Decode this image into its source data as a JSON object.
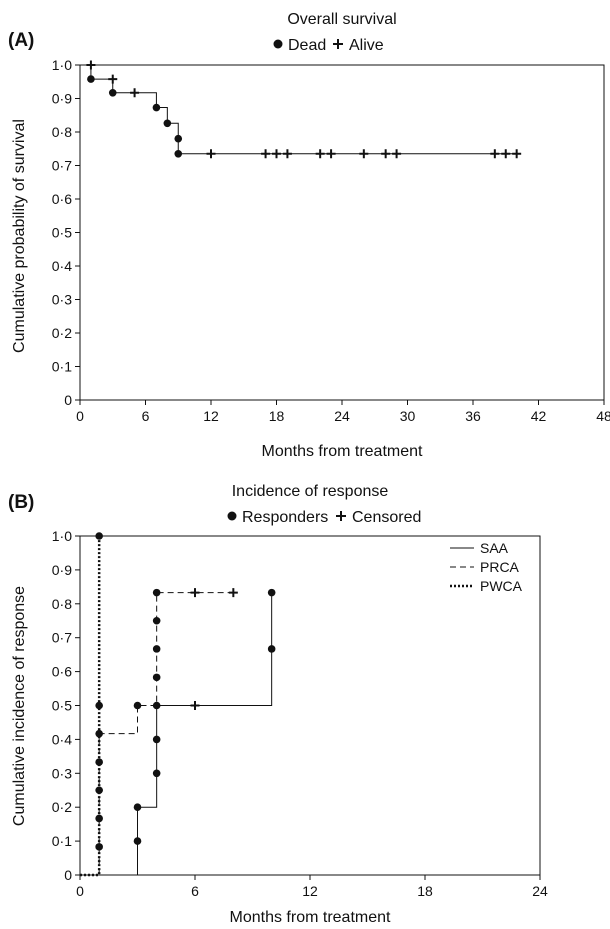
{
  "chart_data": [
    {
      "type": "line",
      "panel": "(A)",
      "title": "Overall survival",
      "legend": {
        "dead": "Dead",
        "alive": "Alive"
      },
      "xlabel": "Months from treatment",
      "ylabel": "Cumulative probability of survival",
      "xlim": [
        0,
        48
      ],
      "ylim": [
        0,
        1
      ],
      "xticks": [
        "0",
        "6",
        "12",
        "18",
        "24",
        "30",
        "36",
        "42",
        "48"
      ],
      "yticks": [
        "0",
        "0·1",
        "0·2",
        "0·3",
        "0·4",
        "0·5",
        "0·6",
        "0·7",
        "0·8",
        "0·9",
        "1·0"
      ],
      "grid": false,
      "series": [
        {
          "style": "solid",
          "steps": [
            [
              0,
              1.0
            ],
            [
              1,
              0.958
            ],
            [
              3,
              0.917
            ],
            [
              7,
              0.873
            ],
            [
              8,
              0.826
            ],
            [
              9,
              0.735
            ],
            [
              40,
              0.735
            ]
          ],
          "events": [
            [
              1,
              0.958
            ],
            [
              3,
              0.917
            ],
            [
              7,
              0.873
            ],
            [
              8,
              0.826
            ],
            [
              9,
              0.78
            ],
            [
              9,
              0.735
            ]
          ],
          "censored": [
            [
              1,
              1.0
            ],
            [
              3,
              0.958
            ],
            [
              5,
              0.917
            ],
            [
              12,
              0.735
            ],
            [
              17,
              0.735
            ],
            [
              18,
              0.735
            ],
            [
              19,
              0.735
            ],
            [
              22,
              0.735
            ],
            [
              23,
              0.735
            ],
            [
              26,
              0.735
            ],
            [
              28,
              0.735
            ],
            [
              29,
              0.735
            ],
            [
              38,
              0.735
            ],
            [
              39,
              0.735
            ],
            [
              40,
              0.735
            ]
          ]
        }
      ]
    },
    {
      "type": "line",
      "panel": "(B)",
      "title": "Incidence of response",
      "legend": {
        "dead": "Responders",
        "alive": "Censored"
      },
      "xlabel": "Months from treatment",
      "ylabel": "Cumulative incidence of response",
      "xlim": [
        0,
        24
      ],
      "ylim": [
        0,
        1
      ],
      "xticks": [
        "0",
        "6",
        "12",
        "18",
        "24"
      ],
      "yticks": [
        "0",
        "0·1",
        "0·2",
        "0·3",
        "0·4",
        "0·5",
        "0·6",
        "0·7",
        "0·8",
        "0·9",
        "1·0"
      ],
      "grid": false,
      "legend_position": "top-right",
      "series": [
        {
          "name": "SAA",
          "style": "solid",
          "steps": [
            [
              0,
              0
            ],
            [
              3,
              0.2
            ],
            [
              4,
              0.5
            ],
            [
              10,
              0.833
            ]
          ],
          "events": [
            [
              3,
              0.1
            ],
            [
              3,
              0.2
            ],
            [
              4,
              0.3
            ],
            [
              4,
              0.4
            ],
            [
              4,
              0.5
            ],
            [
              10,
              0.667
            ],
            [
              10,
              0.833
            ]
          ],
          "censored": [
            [
              6,
              0.5
            ]
          ]
        },
        {
          "name": "PRCA",
          "style": "dashed",
          "steps": [
            [
              0,
              0
            ],
            [
              1,
              0.417
            ],
            [
              3,
              0.5
            ],
            [
              4,
              0.833
            ],
            [
              8,
              0.833
            ]
          ],
          "events": [
            [
              1,
              0.417
            ],
            [
              3,
              0.5
            ],
            [
              4,
              0.583
            ],
            [
              4,
              0.667
            ],
            [
              4,
              0.75
            ],
            [
              4,
              0.833
            ]
          ],
          "censored": [
            [
              6,
              0.833
            ],
            [
              8,
              0.833
            ]
          ]
        },
        {
          "name": "PWCA",
          "style": "dotted",
          "steps": [
            [
              0,
              0
            ],
            [
              1,
              1.0
            ]
          ],
          "events": [
            [
              1,
              0.083
            ],
            [
              1,
              0.167
            ],
            [
              1,
              0.25
            ],
            [
              1,
              0.333
            ],
            [
              1,
              0.5
            ],
            [
              1,
              1.0
            ]
          ],
          "censored": []
        }
      ]
    }
  ]
}
